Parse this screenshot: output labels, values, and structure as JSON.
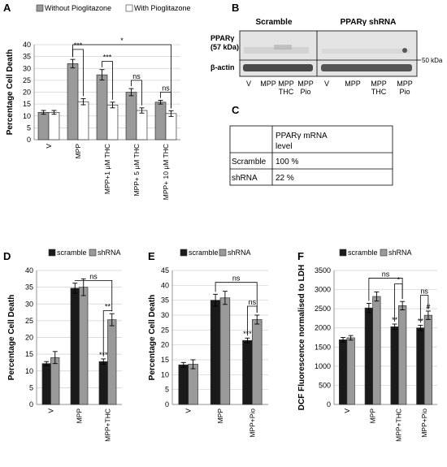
{
  "panels": {
    "A": "A",
    "B": "B",
    "C": "C",
    "D": "D",
    "E": "E",
    "F": "F"
  },
  "colors": {
    "dark_bar": "#1a1a1a",
    "grey_bar": "#9a9a9a",
    "light_bar": "#ffffff",
    "blot_bg": "#e3e3e3"
  },
  "chart_data": [
    {
      "id": "A",
      "type": "bar",
      "categories": [
        "V",
        "MPP",
        "MPP+1 μM THC",
        "MPP+ 5 μM THC",
        "MPP+ 10 μM THC"
      ],
      "series": [
        {
          "name": "Without Pioglitazone",
          "values": [
            11.5,
            32,
            27.3,
            20,
            15.8
          ],
          "errors": [
            0.8,
            1.8,
            2.2,
            1.5,
            0.8
          ]
        },
        {
          "name": "With Pioglitazone",
          "values": [
            11.5,
            16,
            14.6,
            12.3,
            11
          ],
          "errors": [
            0.8,
            1.3,
            1.2,
            1.1,
            1.2
          ]
        }
      ],
      "ylabel": "Percentage Cell Death",
      "ylim": [
        0,
        40
      ],
      "yticks": [
        0,
        5,
        10,
        15,
        20,
        25,
        30,
        35,
        40
      ],
      "annotations": [
        "***",
        "***",
        "ns",
        "ns",
        "*"
      ]
    },
    {
      "id": "D",
      "type": "bar",
      "categories": [
        "V",
        "MPP",
        "MPP+THC"
      ],
      "series": [
        {
          "name": "scramble",
          "values": [
            12.2,
            34.7,
            12.8
          ],
          "errors": [
            0.6,
            1.5,
            0.8
          ]
        },
        {
          "name": "shRNA",
          "values": [
            14,
            35,
            25.3
          ],
          "errors": [
            1.8,
            2.5,
            1.8
          ]
        }
      ],
      "ylabel": "Percentage Cell Death",
      "ylim": [
        0,
        40
      ],
      "yticks": [
        0,
        5,
        10,
        15,
        20,
        25,
        30,
        35,
        40
      ],
      "annotations": [
        "ns",
        "**",
        "***"
      ]
    },
    {
      "id": "E",
      "type": "bar",
      "categories": [
        "V",
        "MPP",
        "MPP+Pio"
      ],
      "series": [
        {
          "name": "scramble",
          "values": [
            13.3,
            35,
            21.5
          ],
          "errors": [
            0.8,
            2,
            0.8
          ]
        },
        {
          "name": "shRNA",
          "values": [
            13.5,
            35.8,
            28.5
          ],
          "errors": [
            1.5,
            2.2,
            1.5
          ]
        }
      ],
      "ylabel": "Percentage Cell Death",
      "ylim": [
        0,
        45
      ],
      "yticks": [
        0,
        5,
        10,
        15,
        20,
        25,
        30,
        35,
        40,
        45
      ],
      "annotations": [
        "ns",
        "ns",
        "***"
      ]
    },
    {
      "id": "F",
      "type": "bar",
      "categories": [
        "V",
        "MPP",
        "MPP+THC",
        "MPP+Pio"
      ],
      "series": [
        {
          "name": "scramble",
          "values": [
            1690,
            2520,
            2030,
            2000
          ],
          "errors": [
            60,
            120,
            70,
            70
          ]
        },
        {
          "name": "shRNA",
          "values": [
            1740,
            2820,
            2580,
            2330
          ],
          "errors": [
            60,
            120,
            110,
            110
          ]
        }
      ],
      "ylabel": "DCF Fluorescence normalised to LDH",
      "ylim": [
        0,
        3500
      ],
      "yticks": [
        0,
        500,
        1000,
        1500,
        2000,
        2500,
        3000,
        3500
      ],
      "annotations": [
        "ns",
        "*",
        "**",
        "ns",
        "#",
        "**"
      ]
    }
  ],
  "blot": {
    "scramble_label": "Scramble",
    "shrna_label": "PPARγ shRNA",
    "pparg_label": "PPARγ",
    "pparg_kda": "(57 kDa)",
    "actin_label": "β-actin",
    "marker_label": "50 kDa",
    "lane1": "V",
    "lane2": "MPP",
    "lane3a": "MPP",
    "lane3b": "THC",
    "lane4a": "MPP",
    "lane4b": "Pio",
    "lane5": "V",
    "lane6": "MPP",
    "lane7a": "MPP",
    "lane7b": "THC",
    "lane8a": "MPP",
    "lane8b": "Pio"
  },
  "mrna_table": {
    "header": "PPARγ mRNA",
    "header2": "level",
    "row1_label": "Scramble",
    "row1_value": "100 %",
    "row2_label": "shRNA",
    "row2_value": "22 %"
  }
}
